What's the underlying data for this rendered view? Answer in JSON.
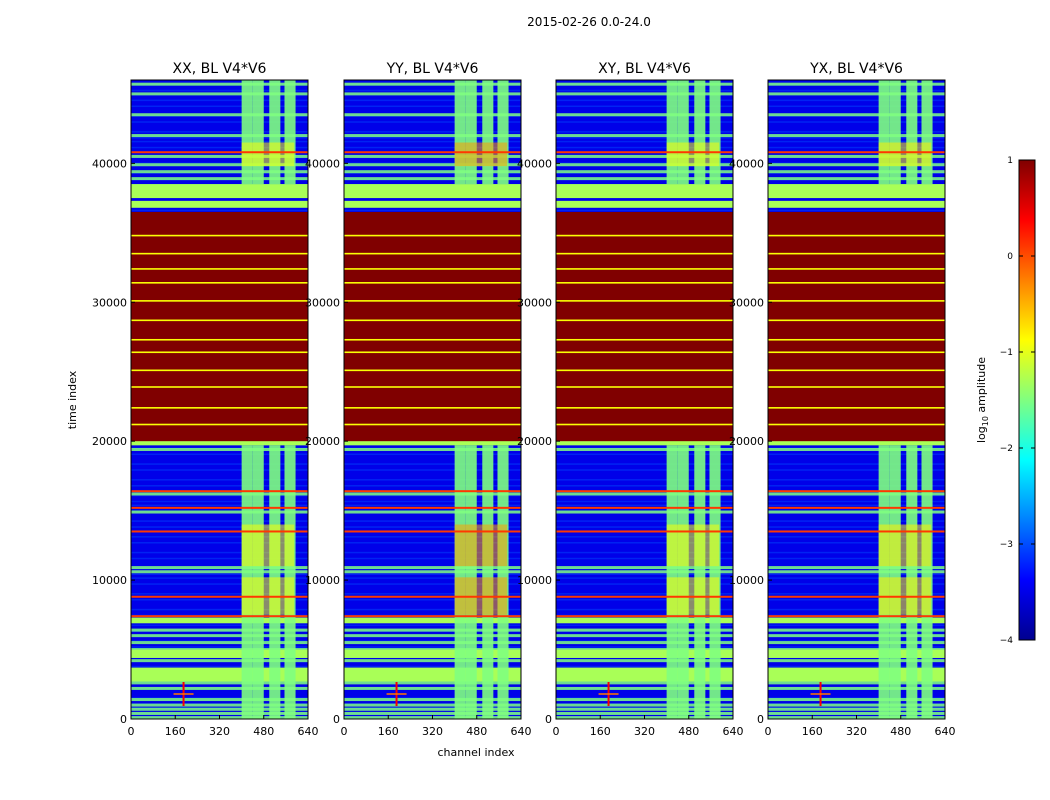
{
  "suptitle": "2015-02-26 0.0-24.0",
  "colormap": [
    "#00008f",
    "#0000ff",
    "#0080ff",
    "#00ffff",
    "#80ff80",
    "#ffff00",
    "#ff8000",
    "#ff0000",
    "#800000"
  ],
  "chart_data": {
    "type": "heatmap",
    "xlabel": "channel index",
    "ylabel": "time index",
    "xlim": [
      0,
      640
    ],
    "ylim": [
      0,
      46000
    ],
    "xticks": [
      0,
      160,
      320,
      480,
      640
    ],
    "yticks": [
      0,
      10000,
      20000,
      30000,
      40000
    ],
    "panels": [
      {
        "title": "XX, BL V4*V6",
        "variant": "XX"
      },
      {
        "title": "YY, BL V4*V6",
        "variant": "YY"
      },
      {
        "title": "XY, BL V4*V6",
        "variant": "XY"
      },
      {
        "title": "YX, BL V4*V6",
        "variant": "YX"
      }
    ],
    "colorbar": {
      "label": "log10 amplitude",
      "label_main": "log",
      "label_sub": "10",
      "label_rest": " amplitude",
      "range": [
        -4,
        1
      ],
      "ticks": [
        1,
        0,
        -1,
        -2,
        -3,
        -4
      ],
      "tick_labels": [
        "1",
        "0",
        "−1",
        "−2",
        "−3",
        "−4"
      ]
    },
    "flagged_time_range": [
      20000,
      36500
    ],
    "band_channel_ranges": [
      [
        400,
        440
      ],
      [
        440,
        480
      ],
      [
        500,
        540
      ],
      [
        555,
        595
      ]
    ],
    "background_log_amplitude": -3.5,
    "band_log_amplitude": -1.5,
    "flagged_log_amplitude": 1.0
  }
}
